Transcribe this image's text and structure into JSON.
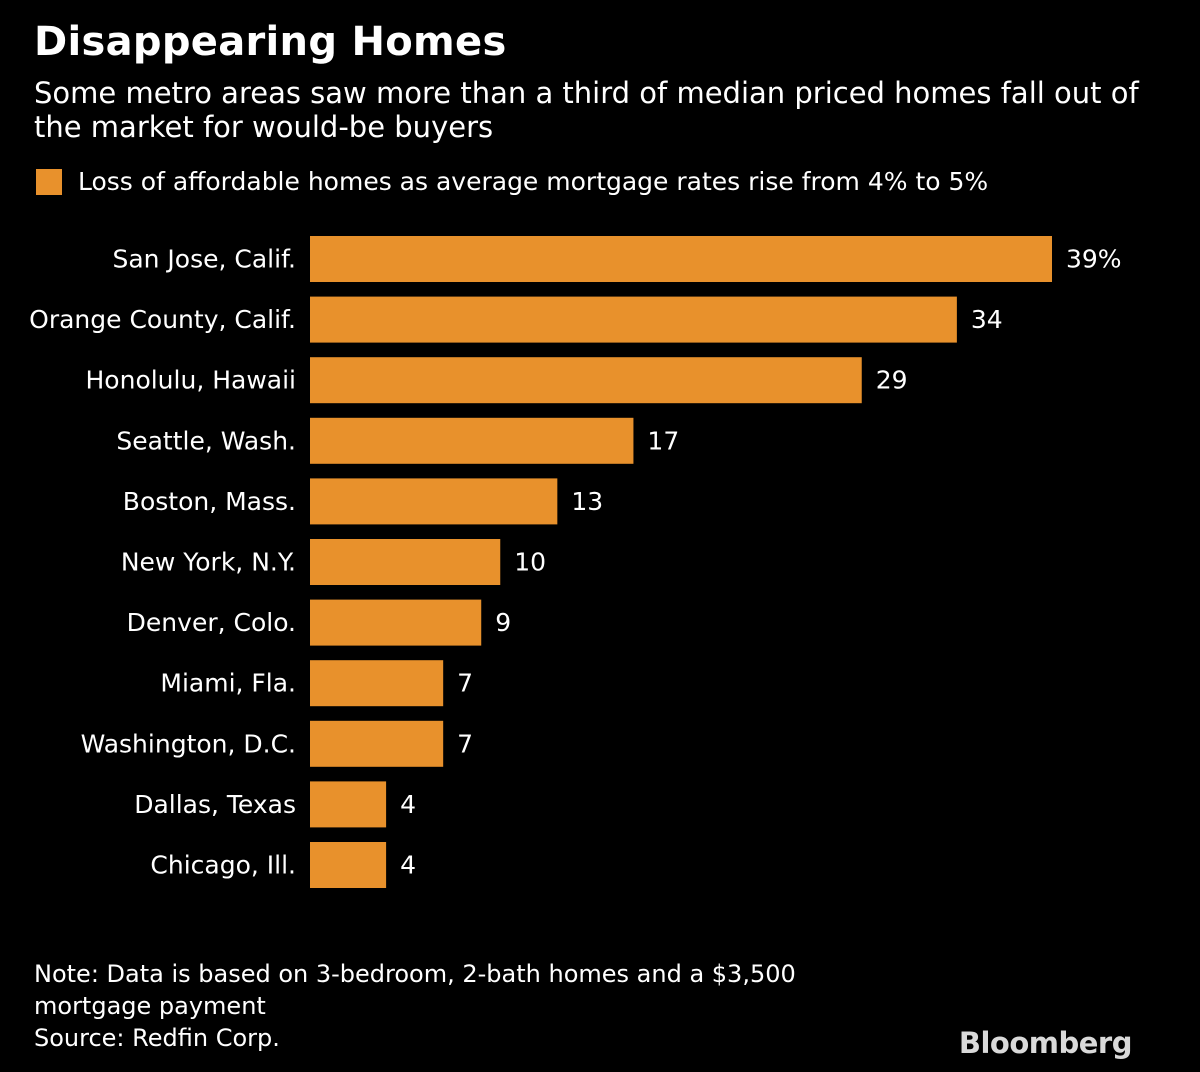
{
  "title": "Disappearing Homes",
  "subtitle": "Some metro areas saw more than a third of median priced homes fall out of the market for would-be buyers",
  "legend": {
    "label": "Loss of affordable homes as average mortgage rates rise from 4% to 5%"
  },
  "colors": {
    "background": "#000000",
    "bar": "#e8912c",
    "text": "#ffffff"
  },
  "chart_data": {
    "type": "bar",
    "orientation": "horizontal",
    "title": "Disappearing Homes",
    "subtitle": "Some metro areas saw more than a third of median priced homes fall out of the market for would-be buyers",
    "categories": [
      "San Jose, Calif.",
      "Orange County, Calif.",
      "Honolulu, Hawaii",
      "Seattle, Wash.",
      "Boston, Mass.",
      "New York, N.Y.",
      "Denver, Colo.",
      "Miami, Fla.",
      "Washington, D.C.",
      "Dallas, Texas",
      "Chicago, Ill."
    ],
    "series": [
      {
        "name": "Loss of affordable homes as average mortgage rates rise from 4% to 5%",
        "values": [
          39,
          34,
          29,
          17,
          13,
          10,
          9,
          7,
          7,
          4,
          4
        ],
        "value_labels": [
          "39%",
          "34",
          "29",
          "17",
          "13",
          "10",
          "9",
          "7",
          "7",
          "4",
          "4"
        ]
      }
    ],
    "xlim": [
      0,
      39
    ],
    "grid": false,
    "legend_position": "top-left",
    "xlabel": "",
    "ylabel": ""
  },
  "note": {
    "line1": "Note: Data is based on 3-bedroom, 2-bath homes and a $3,500",
    "line2": "mortgage payment",
    "source": "Source: Redfin Corp."
  },
  "brand": "Bloomberg"
}
